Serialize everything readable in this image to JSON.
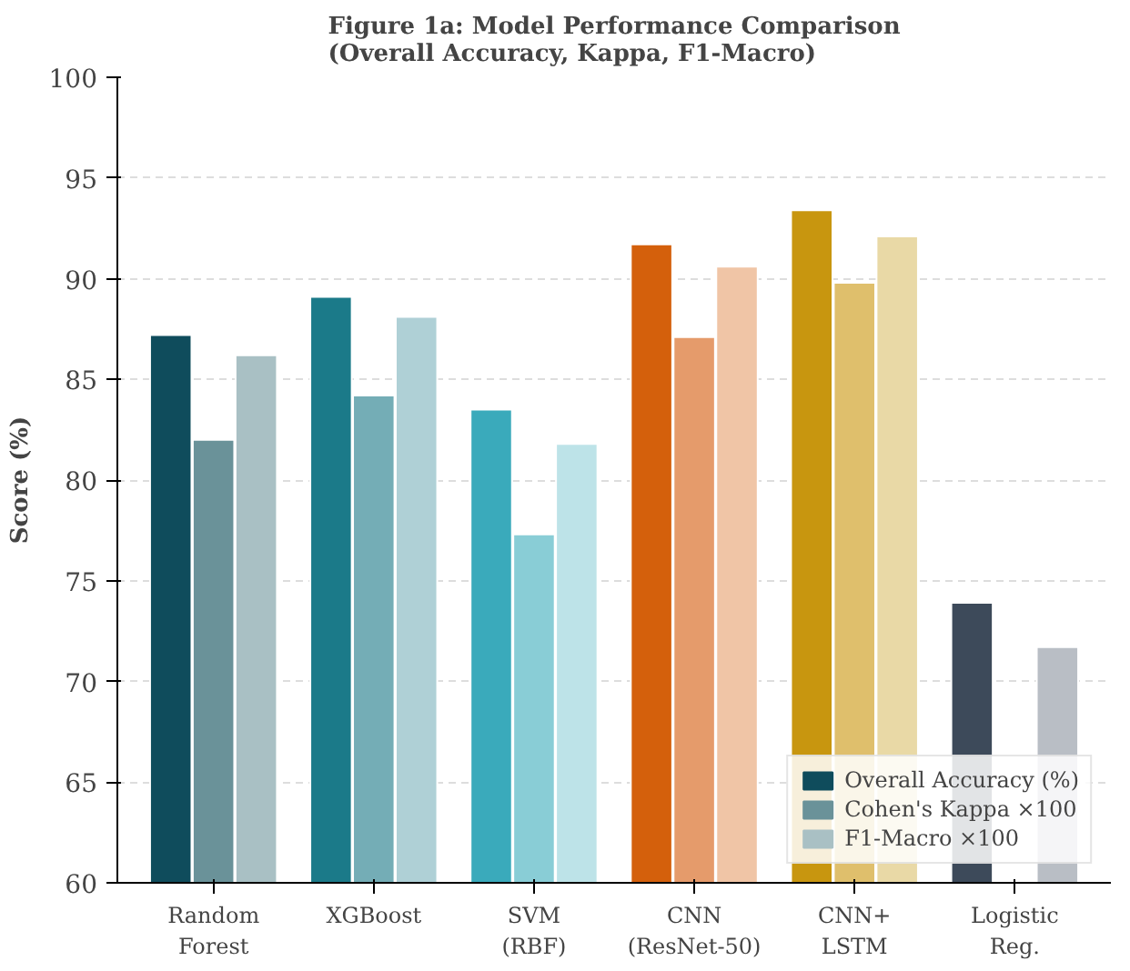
{
  "chart_data": {
    "type": "bar",
    "title": "Figure 1a: Model Performance Comparison\n(Overall Accuracy, Kappa, F1-Macro)",
    "ylabel": "Score (%)",
    "categories": [
      "Random\nForest",
      "XGBoost",
      "SVM\n(RBF)",
      "CNN\n(ResNet-50)",
      "CNN+\nLSTM",
      "Logistic\nReg."
    ],
    "series": [
      {
        "name": "Overall Accuracy (%)",
        "color": "#0f4c5c",
        "colors": [
          "#0f4c5c",
          "#1b7a89",
          "#3aaabb",
          "#d4600c",
          "#c8960f",
          "#3d4a5a"
        ],
        "values": [
          87.2,
          89.1,
          83.5,
          91.7,
          93.4,
          73.9
        ]
      },
      {
        "name": "Cohen's Kappa ×100",
        "color": "#6a9299",
        "colors": [
          "#6a9299",
          "#74adb6",
          "#89cdd6",
          "#e59b6b",
          "#dfbf6c",
          "#8a929c"
        ],
        "values": [
          82.0,
          84.2,
          77.3,
          87.1,
          89.8,
          null
        ]
      },
      {
        "name": "F1-Macro ×100",
        "color": "#a9c0c4",
        "colors": [
          "#a9c0c4",
          "#afd0d6",
          "#bde3e8",
          "#f0c5a6",
          "#e9d9a6",
          "#b9bec5"
        ],
        "values": [
          86.2,
          88.1,
          81.8,
          90.6,
          92.1,
          71.7
        ]
      }
    ],
    "ylim": [
      60,
      100
    ],
    "yticks": [
      60,
      65,
      70,
      75,
      80,
      85,
      90,
      95,
      100
    ],
    "grid": "y",
    "legend": "bottom right"
  }
}
